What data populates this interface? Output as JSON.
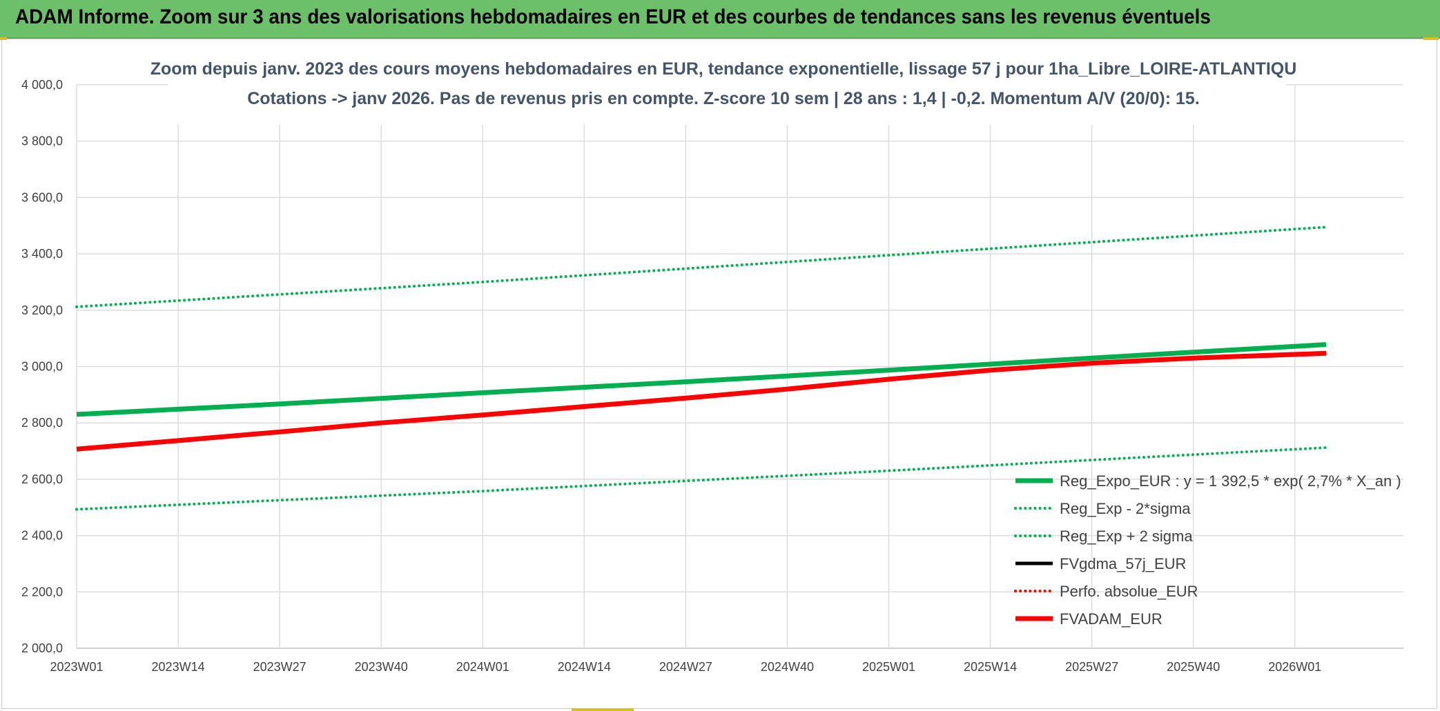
{
  "banner": {
    "title": "ADAM Informe. Zoom sur 3 ans des valorisations hebdomadaires en EUR et des courbes de tendances sans les revenus éventuels",
    "color": "#6cc06a"
  },
  "chart_data": {
    "type": "line",
    "title_line1": "Zoom depuis janv. 2023 des cours moyens hebdomadaires en EUR, tendance exponentielle, lissage 57 j pour 1ha_Libre_LOIRE-ATLANTIQU",
    "title_line2": "Cotations -> janv 2026. Pas de revenus pris en compte. Z-score 10 sem | 28 ans : 1,4 | -0,2. Momentum A/V (20/0): 15.",
    "xlabel": "",
    "ylabel": "",
    "x_ticks": [
      "2023W01",
      "2023W14",
      "2023W27",
      "2023W40",
      "2024W01",
      "2024W14",
      "2024W27",
      "2024W40",
      "2025W01",
      "2025W14",
      "2025W27",
      "2025W40",
      "2026W01"
    ],
    "x_range_weeks": [
      0,
      160
    ],
    "ylim": [
      2000,
      4000
    ],
    "y_ticks": [
      "2 000,0",
      "2 200,0",
      "2 400,0",
      "2 600,0",
      "2 800,0",
      "3 000,0",
      "3 200,0",
      "3 400,0",
      "3 600,0",
      "3 800,0",
      "4 000,0"
    ],
    "grid": true,
    "legend_position": "bottom-right",
    "series": [
      {
        "name": "Reg_Expo_EUR : y = 1 392,5 * exp( 2,7% *  X_an )",
        "color": "#00b050",
        "style": "solid",
        "width": 7,
        "points": [
          [
            0,
            2830
          ],
          [
            26,
            2867
          ],
          [
            52,
            2907
          ],
          [
            78,
            2946
          ],
          [
            104,
            2987
          ],
          [
            130,
            3030
          ],
          [
            160,
            3078
          ]
        ]
      },
      {
        "name": "Reg_Exp - 2*sigma",
        "color": "#00b050",
        "style": "dotted",
        "width": 4,
        "points": [
          [
            0,
            2493
          ],
          [
            52,
            2558
          ],
          [
            104,
            2630
          ],
          [
            160,
            2712
          ]
        ]
      },
      {
        "name": "Reg_Exp + 2 sigma",
        "color": "#00b050",
        "style": "dotted",
        "width": 4,
        "points": [
          [
            0,
            3212
          ],
          [
            52,
            3300
          ],
          [
            104,
            3395
          ],
          [
            160,
            3495
          ]
        ]
      },
      {
        "name": "FVgdma_57j_EUR",
        "color": "#000000",
        "style": "solid",
        "width": 5,
        "points": []
      },
      {
        "name": "Perfo. absolue_EUR",
        "color": "#ff0000",
        "style": "dotted",
        "width": 3,
        "points": []
      },
      {
        "name": "FVADAM_EUR",
        "color": "#ff0000",
        "style": "solid",
        "width": 7,
        "points": [
          [
            0,
            2707
          ],
          [
            13,
            2737
          ],
          [
            26,
            2768
          ],
          [
            39,
            2800
          ],
          [
            52,
            2828
          ],
          [
            65,
            2858
          ],
          [
            78,
            2888
          ],
          [
            91,
            2920
          ],
          [
            104,
            2955
          ],
          [
            117,
            2987
          ],
          [
            130,
            3012
          ],
          [
            143,
            3030
          ],
          [
            160,
            3047
          ]
        ]
      }
    ]
  }
}
